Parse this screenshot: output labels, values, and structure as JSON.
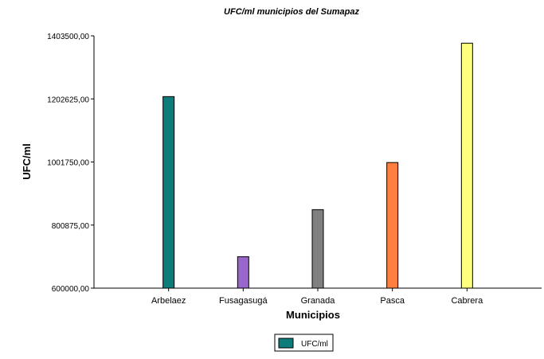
{
  "chart_data": {
    "type": "bar",
    "title": "UFC/ml  municipios del Sumapaz",
    "xlabel": "Municipios",
    "ylabel": "UFC/ml",
    "categories": [
      "Arbelaez",
      "Fusagasugá",
      "Granada",
      "Pasca",
      "Cabrera"
    ],
    "series": [
      {
        "name": "UFC/ml",
        "values": [
          1210000,
          700000,
          850000,
          1000000,
          1380000
        ]
      }
    ],
    "bar_colors": [
      "#0e7c7b",
      "#9966cc",
      "#808080",
      "#ff7f3f",
      "#ffff80"
    ],
    "ylim": [
      600000,
      1403500
    ],
    "yticks": [
      600000,
      800875,
      1001750,
      1202625,
      1403500
    ],
    "ytick_labels": [
      "600000,00",
      "800875,00",
      "1001750,00",
      "1202625,00",
      "1403500,00"
    ],
    "grid": false,
    "legend_position": "bottom-center"
  }
}
